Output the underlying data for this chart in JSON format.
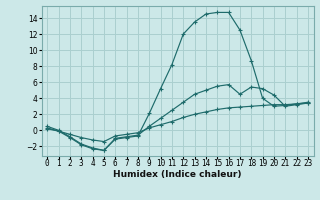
{
  "xlabel": "Humidex (Indice chaleur)",
  "background_color": "#cce8e8",
  "grid_color": "#aacfcf",
  "line_color": "#1e6b6b",
  "xlim": [
    -0.5,
    23.5
  ],
  "ylim": [
    -3.2,
    15.5
  ],
  "xticks": [
    0,
    1,
    2,
    3,
    4,
    5,
    6,
    7,
    8,
    9,
    10,
    11,
    12,
    13,
    14,
    15,
    16,
    17,
    18,
    19,
    20,
    21,
    22,
    23
  ],
  "yticks": [
    -2,
    0,
    2,
    4,
    6,
    8,
    10,
    12,
    14
  ],
  "line1_x": [
    0,
    1,
    2,
    3,
    4,
    5,
    6,
    7,
    8,
    9,
    10,
    11,
    12,
    13,
    14,
    15,
    16,
    17,
    18,
    19,
    20,
    21,
    22,
    23
  ],
  "line1_y": [
    0.5,
    0.0,
    -0.8,
    -1.7,
    -2.2,
    -2.5,
    -1.1,
    -0.9,
    -0.7,
    2.1,
    5.2,
    8.2,
    12.0,
    13.5,
    14.5,
    14.7,
    14.7,
    12.5,
    8.7,
    4.0,
    3.0,
    3.1,
    3.3,
    3.5
  ],
  "line2_x": [
    0,
    1,
    2,
    3,
    4,
    5,
    6,
    7,
    8,
    9,
    10,
    11,
    12,
    13,
    14,
    15,
    16,
    17,
    18,
    19,
    20,
    21,
    22,
    23
  ],
  "line2_y": [
    0.3,
    -0.1,
    -0.9,
    -1.8,
    -2.3,
    -2.5,
    -1.0,
    -0.8,
    -0.6,
    0.5,
    1.5,
    2.5,
    3.5,
    4.5,
    5.0,
    5.5,
    5.7,
    4.5,
    5.4,
    5.2,
    4.4,
    3.0,
    3.2,
    3.4
  ],
  "line3_x": [
    0,
    1,
    2,
    3,
    4,
    5,
    6,
    7,
    8,
    9,
    10,
    11,
    12,
    13,
    14,
    15,
    16,
    17,
    18,
    19,
    20,
    21,
    22,
    23
  ],
  "line3_y": [
    0.2,
    -0.1,
    -0.5,
    -0.9,
    -1.2,
    -1.4,
    -0.7,
    -0.5,
    -0.3,
    0.3,
    0.7,
    1.1,
    1.6,
    2.0,
    2.3,
    2.6,
    2.8,
    2.9,
    3.0,
    3.1,
    3.2,
    3.2,
    3.3,
    3.4
  ],
  "tick_fontsize": 5.5,
  "xlabel_fontsize": 6.5,
  "figsize": [
    3.2,
    2.0
  ],
  "dpi": 100
}
